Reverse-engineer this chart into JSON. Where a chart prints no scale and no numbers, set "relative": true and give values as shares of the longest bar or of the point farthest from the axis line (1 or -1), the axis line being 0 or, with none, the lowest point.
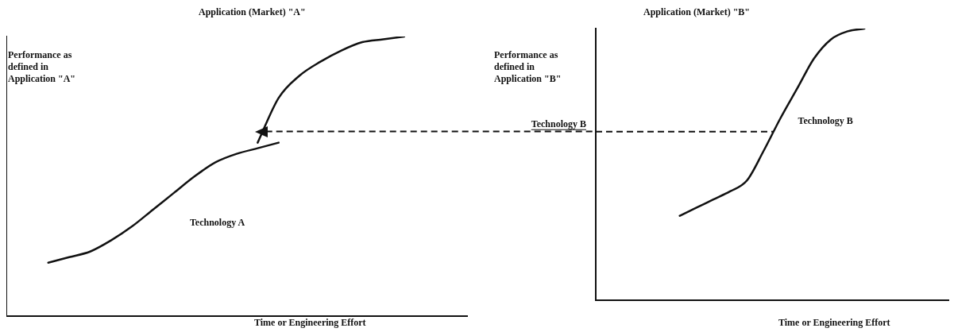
{
  "chart_data": [
    {
      "type": "line",
      "title": "Application (Market) \"A\"",
      "xlabel": "Time or Engineering Effort",
      "ylabel": "Performance as defined in Application \"A\"",
      "relative": true,
      "grid": false,
      "legend": false,
      "marker": "none",
      "ref_lines": [
        {
          "axis": "y",
          "value": 0.66,
          "line_style": "dashed"
        }
      ],
      "categories": [
        null,
        null,
        null,
        null,
        null,
        null,
        null,
        null,
        null,
        null,
        null,
        null,
        null,
        null,
        null,
        null,
        null,
        null,
        null,
        null,
        null,
        null,
        null
      ],
      "series": [
        {
          "name": "Technology A",
          "color": "#111111",
          "values": [
            null,
            null,
            0.19,
            0.21,
            0.23,
            0.27,
            0.32,
            0.38,
            0.44,
            0.5,
            0.55,
            0.58,
            0.6,
            0.62,
            null,
            null,
            null,
            null,
            null,
            null,
            null,
            null,
            null
          ]
        },
        {
          "color": "#111111",
          "values": [
            null,
            null,
            null,
            null,
            null,
            null,
            null,
            null,
            null,
            null,
            null,
            null,
            0.62,
            0.78,
            0.86,
            0.91,
            0.95,
            0.98,
            0.99,
            1,
            null,
            null,
            null
          ]
        }
      ]
    },
    {
      "type": "line",
      "title": "Application (Market) \"B\"",
      "xlabel": "Time or Engineering Effort",
      "ylabel": "Performance as defined in Application \"B\"",
      "relative": true,
      "grid": false,
      "legend": false,
      "marker": "none",
      "ref_lines": [
        {
          "axis": "y",
          "value": 0.62,
          "label": "Technology B",
          "line_style": "dashed"
        }
      ],
      "categories": [
        null,
        null,
        null,
        null,
        null,
        null,
        null,
        null,
        null,
        null,
        null,
        null,
        null,
        null,
        null,
        null,
        null,
        null,
        null,
        null,
        null,
        null
      ],
      "series": [
        {
          "name": "Technology B",
          "color": "#111111",
          "values": [
            null,
            null,
            null,
            null,
            null,
            0.31,
            0.34,
            0.37,
            0.4,
            0.44,
            0.55,
            0.67,
            0.78,
            0.89,
            0.96,
            0.99,
            1,
            null,
            null,
            null,
            null,
            null
          ]
        }
      ]
    }
  ]
}
